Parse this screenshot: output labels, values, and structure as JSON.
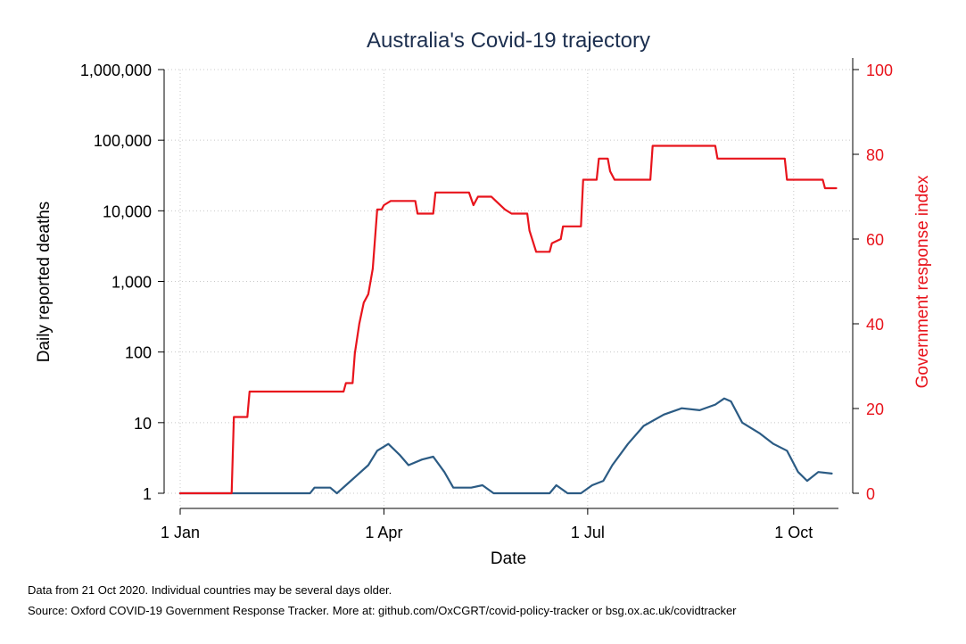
{
  "chart_data": {
    "type": "line",
    "title": "Australia's Covid-19 trajectory",
    "xlabel": "Date",
    "ylabel_left": "Daily reported deaths",
    "ylabel_right": "Government response index",
    "x_ticks": [
      "1 Jan",
      "1 Apr",
      "1 Jul",
      "1 Oct"
    ],
    "y_left_ticks": [
      "1",
      "10",
      "100",
      "1,000",
      "10,000",
      "100,000",
      "1,000,000"
    ],
    "y_right_ticks": [
      "0",
      "20",
      "40",
      "60",
      "80",
      "100"
    ],
    "y_left_scale": "log",
    "y_left_range": [
      1,
      1000000
    ],
    "y_right_range": [
      0,
      100
    ],
    "x_range": [
      "2020-01-01",
      "2020-10-21"
    ],
    "grid": true,
    "series": [
      {
        "name": "",
        "axis": "left",
        "color": "#2b5b84",
        "points": [
          [
            "2020-01-01",
            1
          ],
          [
            "2020-02-28",
            1
          ],
          [
            "2020-03-01",
            1.2
          ],
          [
            "2020-03-08",
            1.2
          ],
          [
            "2020-03-11",
            1
          ],
          [
            "2020-03-15",
            1.3
          ],
          [
            "2020-03-20",
            1.8
          ],
          [
            "2020-03-25",
            2.5
          ],
          [
            "2020-03-29",
            4
          ],
          [
            "2020-04-03",
            5
          ],
          [
            "2020-04-08",
            3.5
          ],
          [
            "2020-04-12",
            2.5
          ],
          [
            "2020-04-18",
            3
          ],
          [
            "2020-04-23",
            3.3
          ],
          [
            "2020-04-28",
            2
          ],
          [
            "2020-05-02",
            1.2
          ],
          [
            "2020-05-10",
            1.2
          ],
          [
            "2020-05-15",
            1.3
          ],
          [
            "2020-05-20",
            1
          ],
          [
            "2020-06-14",
            1
          ],
          [
            "2020-06-17",
            1.3
          ],
          [
            "2020-06-22",
            1
          ],
          [
            "2020-06-28",
            1
          ],
          [
            "2020-07-03",
            1.3
          ],
          [
            "2020-07-08",
            1.5
          ],
          [
            "2020-07-12",
            2.5
          ],
          [
            "2020-07-19",
            5
          ],
          [
            "2020-07-26",
            9
          ],
          [
            "2020-08-04",
            13
          ],
          [
            "2020-08-12",
            16
          ],
          [
            "2020-08-20",
            15
          ],
          [
            "2020-08-27",
            18
          ],
          [
            "2020-08-31",
            22
          ],
          [
            "2020-09-03",
            20
          ],
          [
            "2020-09-08",
            10
          ],
          [
            "2020-09-16",
            7
          ],
          [
            "2020-09-22",
            5
          ],
          [
            "2020-09-28",
            4
          ],
          [
            "2020-10-03",
            2
          ],
          [
            "2020-10-07",
            1.5
          ],
          [
            "2020-10-12",
            2
          ],
          [
            "2020-10-18",
            1.9
          ]
        ]
      },
      {
        "name": "",
        "axis": "right",
        "color": "#e8141c",
        "points": [
          [
            "2020-01-01",
            0
          ],
          [
            "2020-01-24",
            0
          ],
          [
            "2020-01-25",
            18
          ],
          [
            "2020-01-31",
            18
          ],
          [
            "2020-02-01",
            24
          ],
          [
            "2020-03-14",
            24
          ],
          [
            "2020-03-15",
            26
          ],
          [
            "2020-03-18",
            26
          ],
          [
            "2020-03-19",
            33
          ],
          [
            "2020-03-21",
            40
          ],
          [
            "2020-03-23",
            45
          ],
          [
            "2020-03-25",
            47
          ],
          [
            "2020-03-27",
            53
          ],
          [
            "2020-03-29",
            67
          ],
          [
            "2020-03-31",
            67
          ],
          [
            "2020-04-01",
            68
          ],
          [
            "2020-04-04",
            69
          ],
          [
            "2020-04-15",
            69
          ],
          [
            "2020-04-16",
            66
          ],
          [
            "2020-04-23",
            66
          ],
          [
            "2020-04-24",
            71
          ],
          [
            "2020-05-09",
            71
          ],
          [
            "2020-05-11",
            68
          ],
          [
            "2020-05-13",
            70
          ],
          [
            "2020-05-19",
            70
          ],
          [
            "2020-05-21",
            69
          ],
          [
            "2020-05-25",
            67
          ],
          [
            "2020-05-28",
            66
          ],
          [
            "2020-06-04",
            66
          ],
          [
            "2020-06-05",
            62
          ],
          [
            "2020-06-08",
            57
          ],
          [
            "2020-06-14",
            57
          ],
          [
            "2020-06-15",
            59
          ],
          [
            "2020-06-19",
            60
          ],
          [
            "2020-06-20",
            63
          ],
          [
            "2020-06-28",
            63
          ],
          [
            "2020-06-29",
            74
          ],
          [
            "2020-07-05",
            74
          ],
          [
            "2020-07-06",
            79
          ],
          [
            "2020-07-10",
            79
          ],
          [
            "2020-07-11",
            76
          ],
          [
            "2020-07-13",
            74
          ],
          [
            "2020-07-29",
            74
          ],
          [
            "2020-07-30",
            82
          ],
          [
            "2020-08-27",
            82
          ],
          [
            "2020-08-28",
            79
          ],
          [
            "2020-09-27",
            79
          ],
          [
            "2020-09-28",
            74
          ],
          [
            "2020-10-14",
            74
          ],
          [
            "2020-10-15",
            72
          ],
          [
            "2020-10-20",
            72
          ]
        ]
      }
    ],
    "notes": [
      "Data from 21 Oct 2020. Individual countries may be several days older.",
      "Source: Oxford COVID-19 Government Response Tracker. More at: github.com/OxCGRT/covid-policy-tracker or bsg.ox.ac.uk/covidtracker"
    ]
  }
}
